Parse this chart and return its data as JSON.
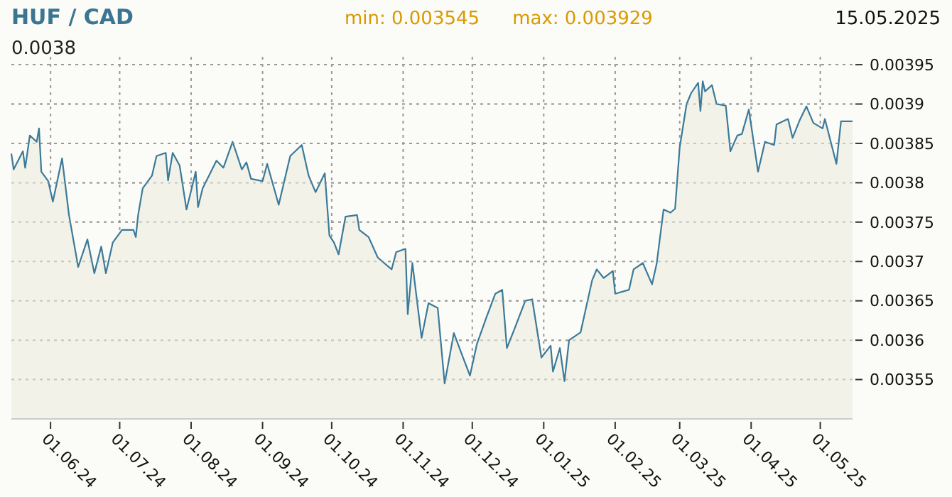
{
  "chart_data": {
    "type": "area",
    "title": "HUF / CAD",
    "annotations": [
      "0.0038",
      "min: 0.003545",
      "max: 0.003929",
      "15.05.2025"
    ],
    "xlim": [
      "2024-05-15",
      "2025-05-15"
    ],
    "xticks": [
      {
        "value": "2024-06-01",
        "label": "01.06.24"
      },
      {
        "value": "2024-07-01",
        "label": "01.07.24"
      },
      {
        "value": "2024-08-01",
        "label": "01.08.24"
      },
      {
        "value": "2024-09-01",
        "label": "01.09.24"
      },
      {
        "value": "2024-10-01",
        "label": "01.10.24"
      },
      {
        "value": "2024-11-01",
        "label": "01.11.24"
      },
      {
        "value": "2024-12-01",
        "label": "01.12.24"
      },
      {
        "value": "2025-01-01",
        "label": "01.01.25"
      },
      {
        "value": "2025-02-01",
        "label": "01.02.25"
      },
      {
        "value": "2025-03-01",
        "label": "01.03.25"
      },
      {
        "value": "2025-04-01",
        "label": "01.04.25"
      },
      {
        "value": "2025-05-01",
        "label": "01.05.25"
      }
    ],
    "ylim": [
      0.0035,
      0.00396
    ],
    "yticks": [
      0.00355,
      0.0036,
      0.00365,
      0.0037,
      0.00375,
      0.0038,
      0.00385,
      0.0039,
      0.00395
    ],
    "grid": true,
    "series": [
      {
        "color": "#3b7a99",
        "x": [
          "2024-05-15",
          "2024-05-16",
          "2024-05-20",
          "2024-05-21",
          "2024-05-23",
          "2024-05-26",
          "2024-05-27",
          "2024-05-28",
          "2024-05-31",
          "2024-06-02",
          "2024-06-06",
          "2024-06-09",
          "2024-06-13",
          "2024-06-17",
          "2024-06-20",
          "2024-06-23",
          "2024-06-25",
          "2024-06-28",
          "2024-07-02",
          "2024-07-07",
          "2024-07-08",
          "2024-07-09",
          "2024-07-11",
          "2024-07-15",
          "2024-07-17",
          "2024-07-21",
          "2024-07-22",
          "2024-07-24",
          "2024-07-27",
          "2024-07-30",
          "2024-08-03",
          "2024-08-04",
          "2024-08-06",
          "2024-08-12",
          "2024-08-15",
          "2024-08-19",
          "2024-08-23",
          "2024-08-25",
          "2024-08-27",
          "2024-09-01",
          "2024-09-03",
          "2024-09-08",
          "2024-09-13",
          "2024-09-18",
          "2024-09-21",
          "2024-09-24",
          "2024-09-28",
          "2024-09-30",
          "2024-10-02",
          "2024-10-04",
          "2024-10-07",
          "2024-10-12",
          "2024-10-13",
          "2024-10-17",
          "2024-10-21",
          "2024-10-27",
          "2024-10-29",
          "2024-11-02",
          "2024-11-03",
          "2024-11-05",
          "2024-11-09",
          "2024-11-12",
          "2024-11-16",
          "2024-11-19",
          "2024-11-23",
          "2024-11-27",
          "2024-11-30",
          "2024-12-03",
          "2024-12-07",
          "2024-12-11",
          "2024-12-14",
          "2024-12-16",
          "2024-12-19",
          "2024-12-24",
          "2024-12-27",
          "2024-12-31",
          "2025-01-04",
          "2025-01-05",
          "2025-01-08",
          "2025-01-10",
          "2025-01-12",
          "2025-01-17",
          "2025-01-22",
          "2025-01-24",
          "2025-01-27",
          "2025-01-31",
          "2025-02-01",
          "2025-02-07",
          "2025-02-09",
          "2025-02-13",
          "2025-02-17",
          "2025-02-19",
          "2025-02-22",
          "2025-02-25",
          "2025-02-27",
          "2025-03-01",
          "2025-03-04",
          "2025-03-06",
          "2025-03-09",
          "2025-03-10",
          "2025-03-11",
          "2025-03-12",
          "2025-03-15",
          "2025-03-17",
          "2025-03-21",
          "2025-03-23",
          "2025-03-26",
          "2025-03-28",
          "2025-03-31",
          "2025-04-04",
          "2025-04-07",
          "2025-04-11",
          "2025-04-12",
          "2025-04-17",
          "2025-04-19",
          "2025-04-22",
          "2025-04-25",
          "2025-04-28",
          "2025-05-02",
          "2025-05-03",
          "2025-05-08",
          "2025-05-10",
          "2025-05-15"
        ],
        "values": [
          0.003837,
          0.003817,
          0.00384,
          0.003819,
          0.00386,
          0.003852,
          0.003869,
          0.003814,
          0.003802,
          0.003776,
          0.003831,
          0.003759,
          0.003693,
          0.003728,
          0.003685,
          0.003719,
          0.003685,
          0.003724,
          0.00374,
          0.00374,
          0.003731,
          0.003759,
          0.003793,
          0.003809,
          0.003834,
          0.003838,
          0.003803,
          0.003838,
          0.003822,
          0.003766,
          0.003814,
          0.003769,
          0.003793,
          0.003828,
          0.003819,
          0.003852,
          0.003817,
          0.003826,
          0.003805,
          0.003802,
          0.003824,
          0.003772,
          0.003834,
          0.003848,
          0.003809,
          0.003788,
          0.003812,
          0.003733,
          0.003724,
          0.003709,
          0.003757,
          0.003759,
          0.00374,
          0.003731,
          0.003705,
          0.00369,
          0.003712,
          0.003716,
          0.003633,
          0.003698,
          0.003603,
          0.003647,
          0.003641,
          0.003545,
          0.003609,
          0.003578,
          0.003555,
          0.003595,
          0.003628,
          0.003659,
          0.003664,
          0.00359,
          0.003612,
          0.00365,
          0.003652,
          0.003578,
          0.003593,
          0.00356,
          0.00359,
          0.003548,
          0.0036,
          0.00361,
          0.003676,
          0.00369,
          0.003679,
          0.003688,
          0.003659,
          0.003664,
          0.00369,
          0.003698,
          0.003671,
          0.003697,
          0.003766,
          0.003762,
          0.003767,
          0.003845,
          0.0039,
          0.003914,
          0.003927,
          0.003891,
          0.003929,
          0.003916,
          0.003924,
          0.0039,
          0.003898,
          0.00384,
          0.00386,
          0.003862,
          0.003893,
          0.003814,
          0.003852,
          0.003848,
          0.003874,
          0.003881,
          0.003857,
          0.003879,
          0.003897,
          0.003876,
          0.003869,
          0.003881,
          0.003824,
          0.003878,
          0.003878
        ]
      }
    ]
  }
}
